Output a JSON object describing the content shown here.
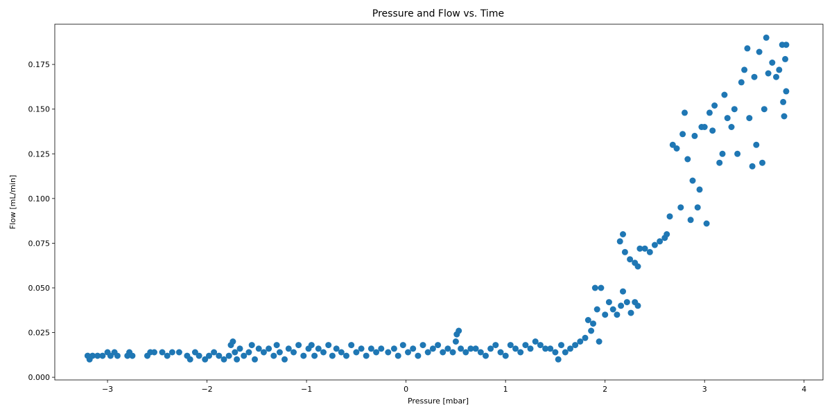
{
  "chart_data": {
    "type": "scatter",
    "title": "Pressure and Flow vs. Time",
    "xlabel": "Pressure [mbar]",
    "ylabel": "Flow [mL/min]",
    "xlim": [
      -3.53,
      4.19
    ],
    "ylim": [
      -0.0015,
      0.1975
    ],
    "xticks": [
      -3,
      -2,
      -1,
      0,
      1,
      2,
      3,
      4
    ],
    "xtick_labels": [
      "−3",
      "−2",
      "−1",
      "0",
      "1",
      "2",
      "3",
      "4"
    ],
    "yticks": [
      0.0,
      0.025,
      0.05,
      0.075,
      0.1,
      0.125,
      0.15,
      0.175
    ],
    "ytick_labels": [
      "0.000",
      "0.025",
      "0.050",
      "0.075",
      "0.100",
      "0.125",
      "0.150",
      "0.175"
    ],
    "grid": false,
    "legend": "none",
    "marker_color": "#1f77b4",
    "series": [
      {
        "points": [
          [
            -3.2,
            0.012
          ],
          [
            -3.18,
            0.01
          ],
          [
            -3.15,
            0.012
          ],
          [
            -3.1,
            0.012
          ],
          [
            -3.05,
            0.012
          ],
          [
            -3.0,
            0.014
          ],
          [
            -2.97,
            0.012
          ],
          [
            -2.93,
            0.014
          ],
          [
            -2.9,
            0.012
          ],
          [
            -2.8,
            0.012
          ],
          [
            -2.78,
            0.014
          ],
          [
            -2.75,
            0.012
          ],
          [
            -2.6,
            0.012
          ],
          [
            -2.57,
            0.014
          ],
          [
            -2.53,
            0.014
          ],
          [
            -2.45,
            0.014
          ],
          [
            -2.4,
            0.012
          ],
          [
            -2.35,
            0.014
          ],
          [
            -2.28,
            0.014
          ],
          [
            -2.2,
            0.012
          ],
          [
            -2.17,
            0.01
          ],
          [
            -2.12,
            0.014
          ],
          [
            -2.08,
            0.012
          ],
          [
            -2.02,
            0.01
          ],
          [
            -1.98,
            0.012
          ],
          [
            -1.93,
            0.014
          ],
          [
            -1.88,
            0.012
          ],
          [
            -1.83,
            0.01
          ],
          [
            -1.78,
            0.012
          ],
          [
            -1.76,
            0.018
          ],
          [
            -1.74,
            0.02
          ],
          [
            -1.72,
            0.014
          ],
          [
            -1.7,
            0.01
          ],
          [
            -1.67,
            0.016
          ],
          [
            -1.63,
            0.012
          ],
          [
            -1.58,
            0.014
          ],
          [
            -1.55,
            0.018
          ],
          [
            -1.52,
            0.01
          ],
          [
            -1.48,
            0.016
          ],
          [
            -1.43,
            0.014
          ],
          [
            -1.38,
            0.016
          ],
          [
            -1.33,
            0.012
          ],
          [
            -1.3,
            0.018
          ],
          [
            -1.27,
            0.014
          ],
          [
            -1.22,
            0.01
          ],
          [
            -1.18,
            0.016
          ],
          [
            -1.13,
            0.014
          ],
          [
            -1.08,
            0.018
          ],
          [
            -1.03,
            0.012
          ],
          [
            -0.98,
            0.016
          ],
          [
            -0.95,
            0.018
          ],
          [
            -0.92,
            0.012
          ],
          [
            -0.88,
            0.016
          ],
          [
            -0.83,
            0.014
          ],
          [
            -0.78,
            0.018
          ],
          [
            -0.74,
            0.012
          ],
          [
            -0.7,
            0.016
          ],
          [
            -0.65,
            0.014
          ],
          [
            -0.6,
            0.012
          ],
          [
            -0.55,
            0.018
          ],
          [
            -0.5,
            0.014
          ],
          [
            -0.45,
            0.016
          ],
          [
            -0.4,
            0.012
          ],
          [
            -0.35,
            0.016
          ],
          [
            -0.3,
            0.014
          ],
          [
            -0.25,
            0.016
          ],
          [
            -0.18,
            0.014
          ],
          [
            -0.12,
            0.016
          ],
          [
            -0.08,
            0.012
          ],
          [
            -0.03,
            0.018
          ],
          [
            0.02,
            0.014
          ],
          [
            0.07,
            0.016
          ],
          [
            0.12,
            0.012
          ],
          [
            0.17,
            0.018
          ],
          [
            0.22,
            0.014
          ],
          [
            0.27,
            0.016
          ],
          [
            0.32,
            0.018
          ],
          [
            0.37,
            0.014
          ],
          [
            0.42,
            0.016
          ],
          [
            0.47,
            0.014
          ],
          [
            0.5,
            0.02
          ],
          [
            0.51,
            0.024
          ],
          [
            0.53,
            0.026
          ],
          [
            0.55,
            0.016
          ],
          [
            0.6,
            0.014
          ],
          [
            0.65,
            0.016
          ],
          [
            0.7,
            0.016
          ],
          [
            0.75,
            0.014
          ],
          [
            0.8,
            0.012
          ],
          [
            0.85,
            0.016
          ],
          [
            0.9,
            0.018
          ],
          [
            0.95,
            0.014
          ],
          [
            1.0,
            0.012
          ],
          [
            1.05,
            0.018
          ],
          [
            1.1,
            0.016
          ],
          [
            1.15,
            0.014
          ],
          [
            1.2,
            0.018
          ],
          [
            1.25,
            0.016
          ],
          [
            1.3,
            0.02
          ],
          [
            1.35,
            0.018
          ],
          [
            1.4,
            0.016
          ],
          [
            1.45,
            0.016
          ],
          [
            1.5,
            0.014
          ],
          [
            1.53,
            0.01
          ],
          [
            1.56,
            0.018
          ],
          [
            1.6,
            0.014
          ],
          [
            1.65,
            0.016
          ],
          [
            1.7,
            0.018
          ],
          [
            1.75,
            0.02
          ],
          [
            1.8,
            0.022
          ],
          [
            1.83,
            0.032
          ],
          [
            1.86,
            0.026
          ],
          [
            1.88,
            0.03
          ],
          [
            1.9,
            0.05
          ],
          [
            1.92,
            0.038
          ],
          [
            1.94,
            0.02
          ],
          [
            1.96,
            0.05
          ],
          [
            2.0,
            0.035
          ],
          [
            2.04,
            0.042
          ],
          [
            2.08,
            0.038
          ],
          [
            2.12,
            0.035
          ],
          [
            2.16,
            0.04
          ],
          [
            2.18,
            0.048
          ],
          [
            2.22,
            0.042
          ],
          [
            2.26,
            0.036
          ],
          [
            2.3,
            0.042
          ],
          [
            2.33,
            0.04
          ],
          [
            2.15,
            0.076
          ],
          [
            2.18,
            0.08
          ],
          [
            2.2,
            0.07
          ],
          [
            2.25,
            0.066
          ],
          [
            2.3,
            0.064
          ],
          [
            2.33,
            0.062
          ],
          [
            2.35,
            0.072
          ],
          [
            2.4,
            0.072
          ],
          [
            2.45,
            0.07
          ],
          [
            2.5,
            0.074
          ],
          [
            2.55,
            0.076
          ],
          [
            2.6,
            0.078
          ],
          [
            2.62,
            0.08
          ],
          [
            2.65,
            0.09
          ],
          [
            2.68,
            0.13
          ],
          [
            2.72,
            0.128
          ],
          [
            2.76,
            0.095
          ],
          [
            2.78,
            0.136
          ],
          [
            2.8,
            0.148
          ],
          [
            2.83,
            0.122
          ],
          [
            2.86,
            0.088
          ],
          [
            2.88,
            0.11
          ],
          [
            2.9,
            0.135
          ],
          [
            2.93,
            0.095
          ],
          [
            2.95,
            0.105
          ],
          [
            2.97,
            0.14
          ],
          [
            3.0,
            0.14
          ],
          [
            3.02,
            0.086
          ],
          [
            3.05,
            0.148
          ],
          [
            3.08,
            0.138
          ],
          [
            3.1,
            0.152
          ],
          [
            3.15,
            0.12
          ],
          [
            3.18,
            0.125
          ],
          [
            3.2,
            0.158
          ],
          [
            3.23,
            0.145
          ],
          [
            3.27,
            0.14
          ],
          [
            3.3,
            0.15
          ],
          [
            3.33,
            0.125
          ],
          [
            3.37,
            0.165
          ],
          [
            3.4,
            0.172
          ],
          [
            3.43,
            0.184
          ],
          [
            3.45,
            0.145
          ],
          [
            3.48,
            0.118
          ],
          [
            3.5,
            0.168
          ],
          [
            3.52,
            0.13
          ],
          [
            3.55,
            0.182
          ],
          [
            3.58,
            0.12
          ],
          [
            3.6,
            0.15
          ],
          [
            3.62,
            0.19
          ],
          [
            3.64,
            0.17
          ],
          [
            3.68,
            0.176
          ],
          [
            3.72,
            0.168
          ],
          [
            3.75,
            0.172
          ],
          [
            3.78,
            0.186
          ],
          [
            3.79,
            0.154
          ],
          [
            3.8,
            0.146
          ],
          [
            3.81,
            0.178
          ],
          [
            3.82,
            0.16
          ],
          [
            3.82,
            0.186
          ]
        ]
      }
    ]
  }
}
